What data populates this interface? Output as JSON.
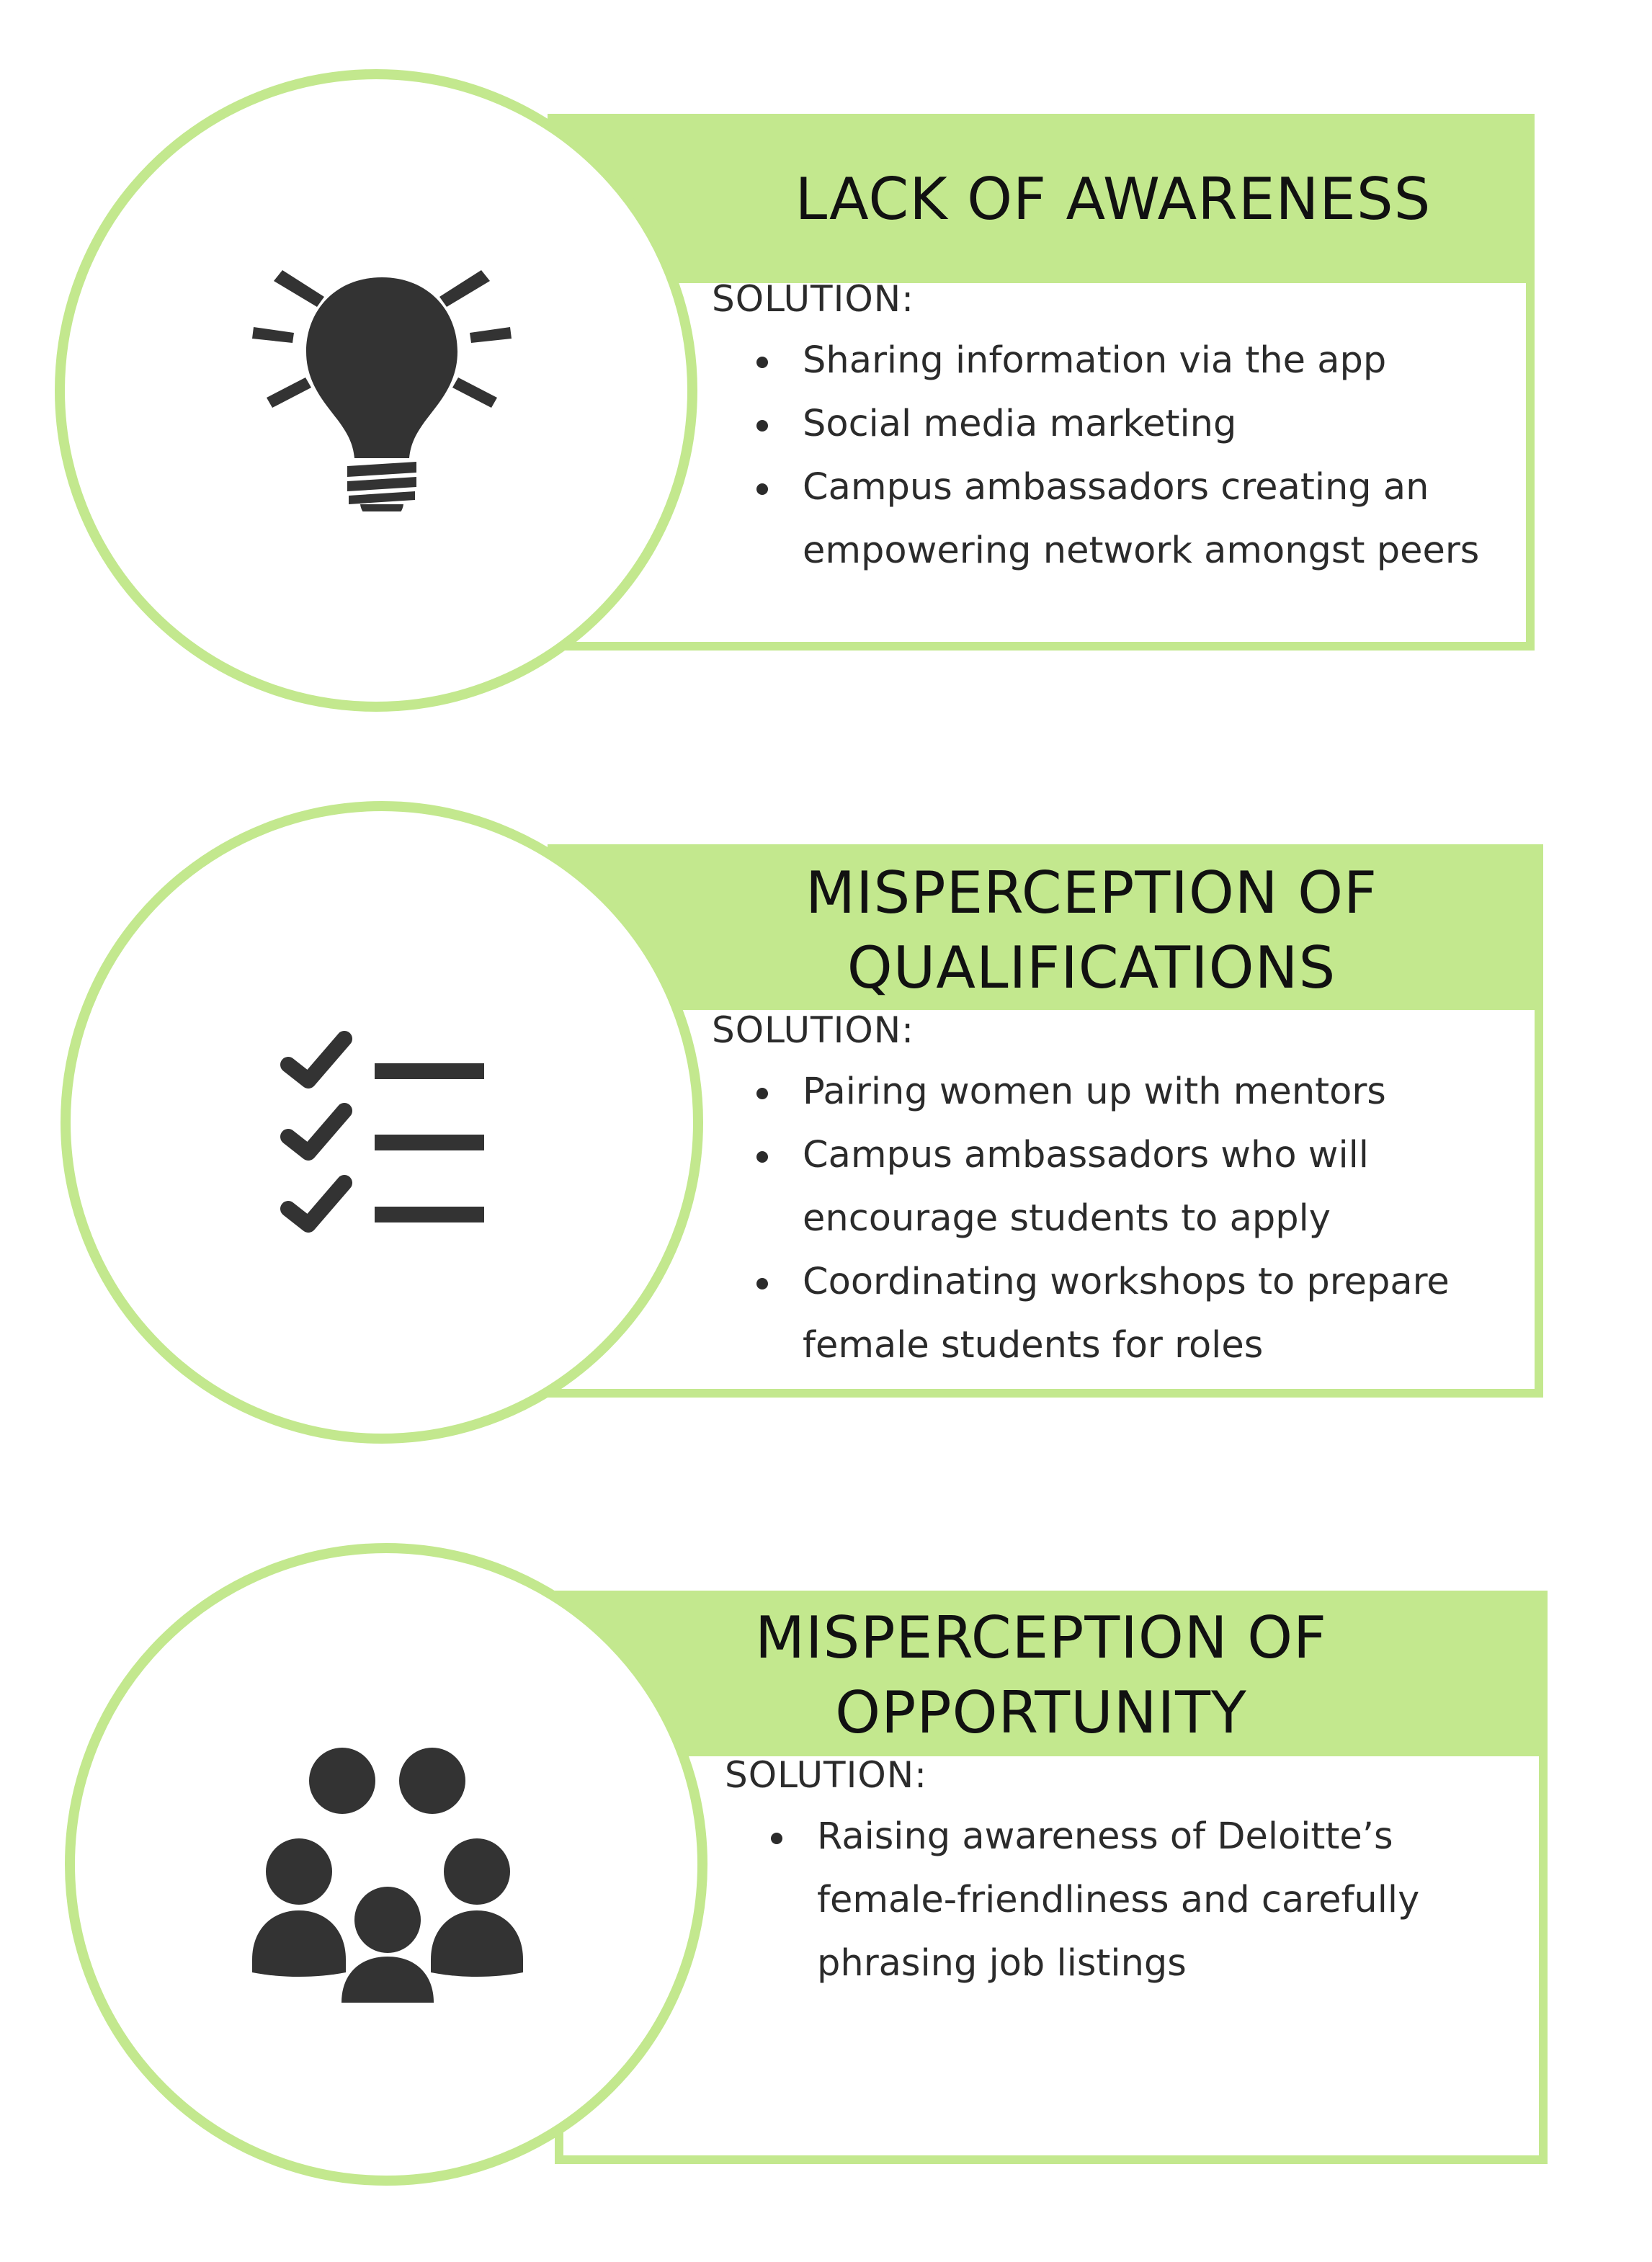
{
  "colors": {
    "accent": "#c3e88e",
    "icon": "#333333",
    "text": "#2b2b2b"
  },
  "cards": [
    {
      "icon": "lightbulb-icon",
      "title_lines": [
        "LACK OF AWARENESS"
      ],
      "solution_label": "SOLUTION:",
      "bullets": [
        "Sharing information via the app",
        "Social media marketing",
        "Campus ambassadors creating an empowering network amongst peers"
      ]
    },
    {
      "icon": "checklist-icon",
      "title_lines": [
        "MISPERCEPTION OF",
        "QUALIFICATIONS"
      ],
      "solution_label": "SOLUTION:",
      "bullets": [
        "Pairing women up with mentors",
        "Campus ambassadors who will encourage students to apply",
        "Coordinating workshops to prepare female students for roles"
      ]
    },
    {
      "icon": "group-icon",
      "title_lines": [
        "MISPERCEPTION OF",
        "OPPORTUNITY"
      ],
      "solution_label": "SOLUTION:",
      "bullets": [
        "Raising awareness of Deloitte’s female-friendliness and carefully phrasing job listings"
      ]
    }
  ]
}
